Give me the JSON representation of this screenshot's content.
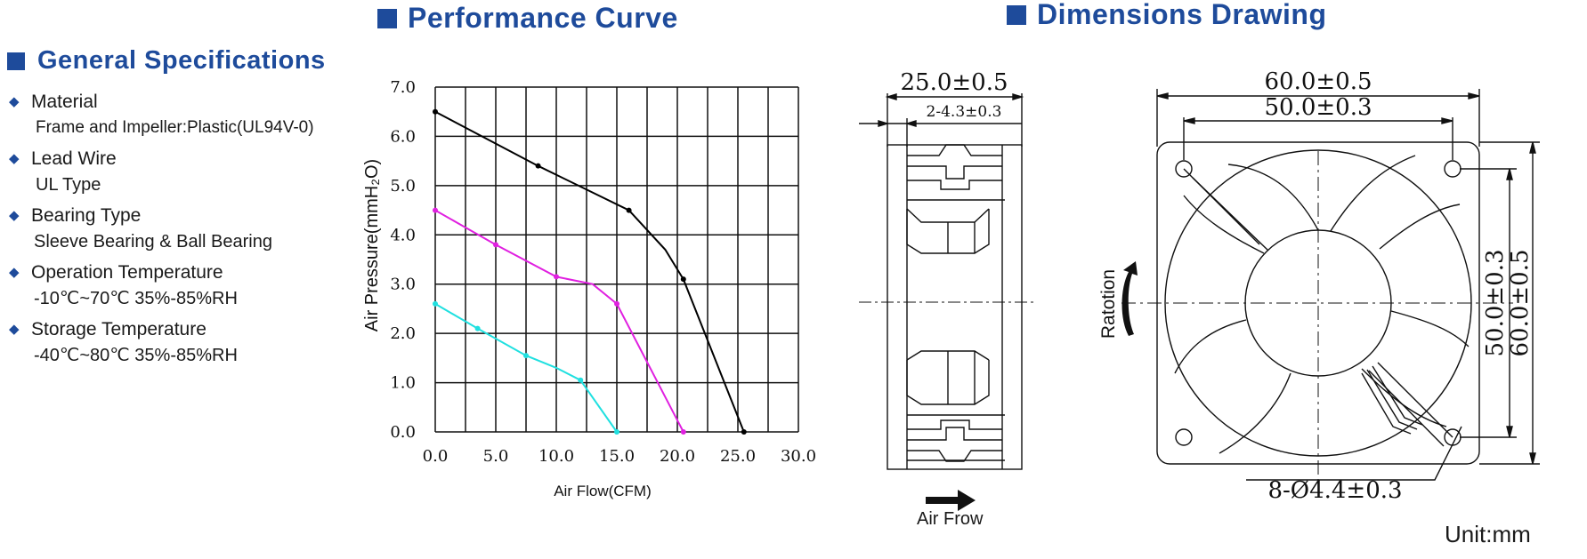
{
  "sections": {
    "general_title": "General Specifications",
    "performance_title": "Performance Curve",
    "dimensions_title": "Dimensions Drawing"
  },
  "specs": [
    {
      "label": "Material",
      "value": "Frame and Impeller:Plastic(UL94V-0)"
    },
    {
      "label": "Lead Wire",
      "value": "UL Type"
    },
    {
      "label": "Bearing Type",
      "value": "Sleeve Bearing & Ball Bearing"
    },
    {
      "label": "Operation Temperature",
      "value": "-10℃~70℃  35%-85%RH"
    },
    {
      "label": "Storage Temperature",
      "value": "-40℃~80℃  35%-85%RH"
    }
  ],
  "chart_data": {
    "type": "line",
    "title": "",
    "xlabel": "Air Flow(CFM)",
    "ylabel": "Air Pressure(mmH₂O)",
    "xlim": [
      0,
      30
    ],
    "ylim": [
      0,
      7
    ],
    "xticks": [
      "0.0",
      "5.0",
      "10.0",
      "15.0",
      "20.0",
      "25.0",
      "30.0"
    ],
    "yticks": [
      "0.0",
      "1.0",
      "2.0",
      "3.0",
      "4.0",
      "5.0",
      "6.0",
      "7.0"
    ],
    "grid": true,
    "series": [
      {
        "color": "#000000",
        "points": [
          [
            0,
            6.5
          ],
          [
            8.5,
            5.4
          ],
          [
            16,
            4.5
          ],
          [
            19,
            3.7
          ],
          [
            20.5,
            3.1
          ],
          [
            25.5,
            0
          ]
        ],
        "markers": [
          [
            0,
            6.5
          ],
          [
            8.5,
            5.4
          ],
          [
            16,
            4.5
          ],
          [
            20.5,
            3.1
          ],
          [
            25.5,
            0
          ]
        ]
      },
      {
        "color": "#e020e0",
        "points": [
          [
            0,
            4.5
          ],
          [
            5,
            3.8
          ],
          [
            10,
            3.15
          ],
          [
            13,
            3.0
          ],
          [
            15,
            2.6
          ],
          [
            20.5,
            0
          ]
        ],
        "markers": [
          [
            0,
            4.5
          ],
          [
            5,
            3.8
          ],
          [
            10,
            3.15
          ],
          [
            15,
            2.6
          ],
          [
            20.5,
            0
          ]
        ]
      },
      {
        "color": "#20e0e0",
        "points": [
          [
            0,
            2.6
          ],
          [
            3.5,
            2.1
          ],
          [
            7.5,
            1.55
          ],
          [
            10,
            1.3
          ],
          [
            12,
            1.05
          ],
          [
            15,
            0
          ]
        ],
        "markers": [
          [
            0,
            2.6
          ],
          [
            3.5,
            2.1
          ],
          [
            7.5,
            1.55
          ],
          [
            12,
            1.05
          ],
          [
            15,
            0
          ]
        ]
      }
    ]
  },
  "drawing": {
    "side_width": "25.0±0.5",
    "side_flange": "2-4.3±0.3",
    "front_width": "60.0±0.5",
    "front_hole_spacing": "50.0±0.3",
    "front_height_holes": "50.0±0.3",
    "front_height": "60.0±0.5",
    "hole_spec": "8-Ø4.4±0.3",
    "rotation": "Ratotion",
    "airflow": "Air Frow",
    "unit": "Unit:mm"
  }
}
